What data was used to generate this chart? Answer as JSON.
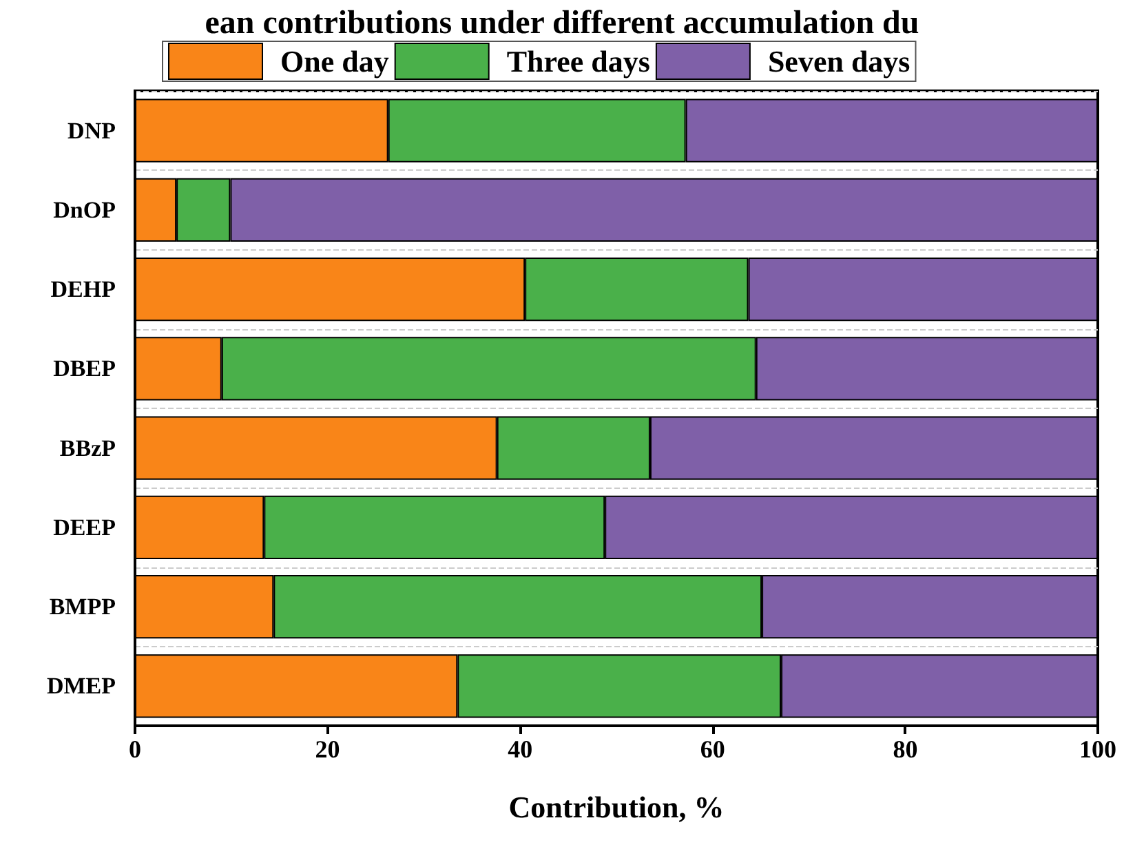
{
  "chart_data": {
    "type": "bar",
    "orientation": "horizontal",
    "stacked": true,
    "title": "ean contributions under different accumulation du",
    "xlabel": "Contribution, %",
    "categories": [
      "DNP",
      "DnOP",
      "DEHP",
      "DBEP",
      "BBzP",
      "DEEP",
      "BMPP",
      "DMEP"
    ],
    "series": [
      {
        "name": "One day",
        "color": "#f98518",
        "values": [
          26.3,
          4.3,
          40.5,
          9.0,
          37.6,
          13.4,
          14.4,
          33.5
        ]
      },
      {
        "name": "Three days",
        "color": "#4ab04a",
        "values": [
          30.9,
          5.6,
          23.2,
          55.5,
          15.9,
          35.4,
          50.7,
          33.6
        ]
      },
      {
        "name": "Seven days",
        "color": "#7f60a8",
        "values": [
          42.8,
          90.1,
          36.3,
          35.5,
          46.5,
          51.2,
          34.9,
          32.9
        ]
      }
    ],
    "xlim": [
      0,
      100
    ],
    "xticks": [
      0,
      20,
      40,
      60,
      80,
      100
    ],
    "grid": "y",
    "legend": "top"
  }
}
